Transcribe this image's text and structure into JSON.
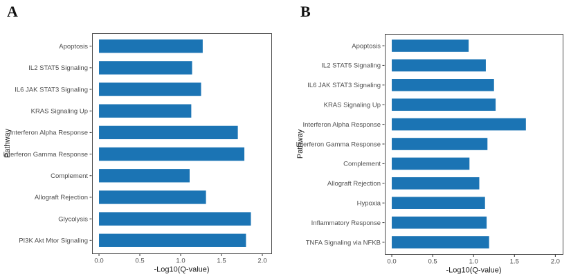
{
  "figure": {
    "panels": [
      {
        "label": "A"
      },
      {
        "label": "B"
      }
    ]
  },
  "colors": {
    "bar_fill": "#1b74b4",
    "panel_border": "#4a4a4a",
    "tick_mark": "#333333",
    "axis_text": "#4d4d4d",
    "axis_title": "#1a1a1a",
    "background": "#ffffff"
  },
  "chart_data": [
    {
      "panel": "A",
      "type": "bar",
      "orientation": "horizontal",
      "title": "",
      "xlabel": "-Log10(Q-value)",
      "ylabel": "Pathway",
      "x_ticks": [
        0.0,
        0.5,
        1.0,
        1.5,
        2.0
      ],
      "xlim": [
        -0.085,
        2.11
      ],
      "grid": false,
      "legend": null,
      "categories": [
        "Apoptosis",
        "IL2 STAT5 Signaling",
        "IL6 JAK STAT3 Signaling",
        "KRAS Signaling Up",
        "Interferon Alpha Response",
        "Interferon Gamma Response",
        "Complement",
        "Allograft Rejection",
        "Glycolysis",
        "PI3K Akt Mtor Signaling"
      ],
      "values": [
        1.27,
        1.14,
        1.25,
        1.13,
        1.7,
        1.78,
        1.11,
        1.31,
        1.86,
        1.8
      ]
    },
    {
      "panel": "B",
      "type": "bar",
      "orientation": "horizontal",
      "title": "",
      "xlabel": "-Log10(Q-value)",
      "ylabel": "Pathway",
      "x_ticks": [
        0.0,
        0.5,
        1.0,
        1.5,
        2.0
      ],
      "xlim": [
        -0.085,
        2.09
      ],
      "grid": false,
      "legend": null,
      "categories": [
        "Apoptosis",
        "IL2 STAT5 Signaling",
        "IL6 JAK STAT3 Signaling",
        "KRAS Signaling Up",
        "Interferon Alpha Response",
        "Interferon Gamma Response",
        "Complement",
        "Allograft Rejection",
        "Hypoxia",
        "Inflammatory Response",
        "TNFA Signaling via NFKB"
      ],
      "values": [
        0.94,
        1.15,
        1.25,
        1.27,
        1.64,
        1.17,
        0.95,
        1.07,
        1.14,
        1.16,
        1.19
      ]
    }
  ]
}
